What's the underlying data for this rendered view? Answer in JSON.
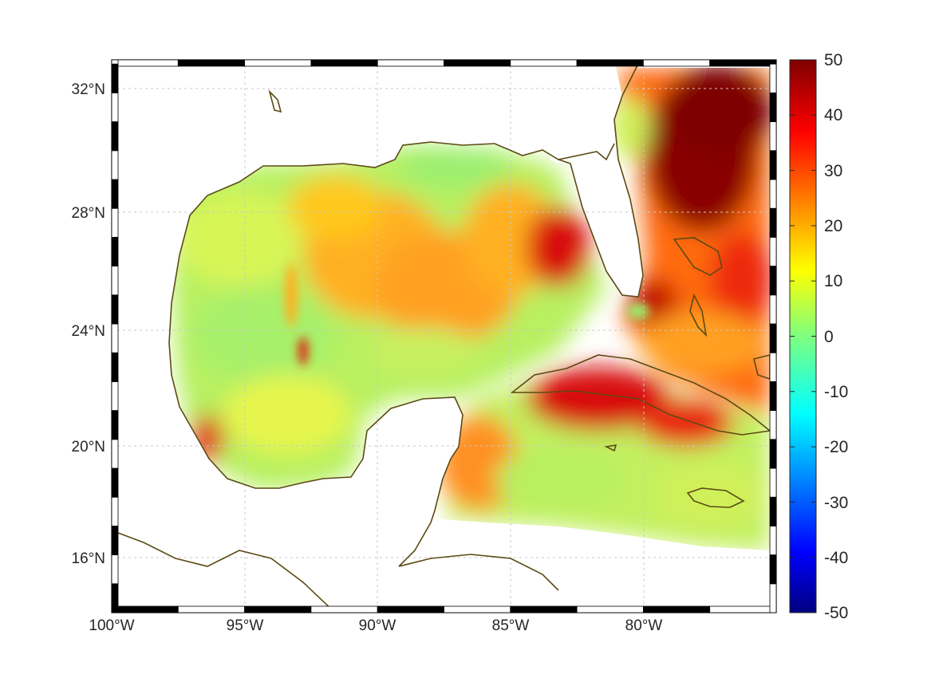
{
  "map": {
    "lat_labels": [
      "32°N",
      "28°N",
      "24°N",
      "20°N",
      "16°N"
    ],
    "lon_labels": [
      "100°W",
      "95°W",
      "90°W",
      "85°W",
      "80°W"
    ],
    "lat_values": [
      32,
      28,
      24,
      20,
      16
    ],
    "lon_values": [
      -100,
      -95,
      -90,
      -85,
      -80
    ],
    "extent": {
      "lon": [
        -100,
        -75
      ],
      "lat": [
        14.3,
        33
      ]
    },
    "grid": true,
    "coastline_color": "#5c4a14",
    "land_color": "#ffffff"
  },
  "colorbar": {
    "labels": [
      "50",
      "40",
      "30",
      "20",
      "10",
      "0",
      "-10",
      "-20",
      "-30",
      "-40",
      "-50"
    ],
    "min": -50,
    "max": 50,
    "colormap": "jet"
  }
}
